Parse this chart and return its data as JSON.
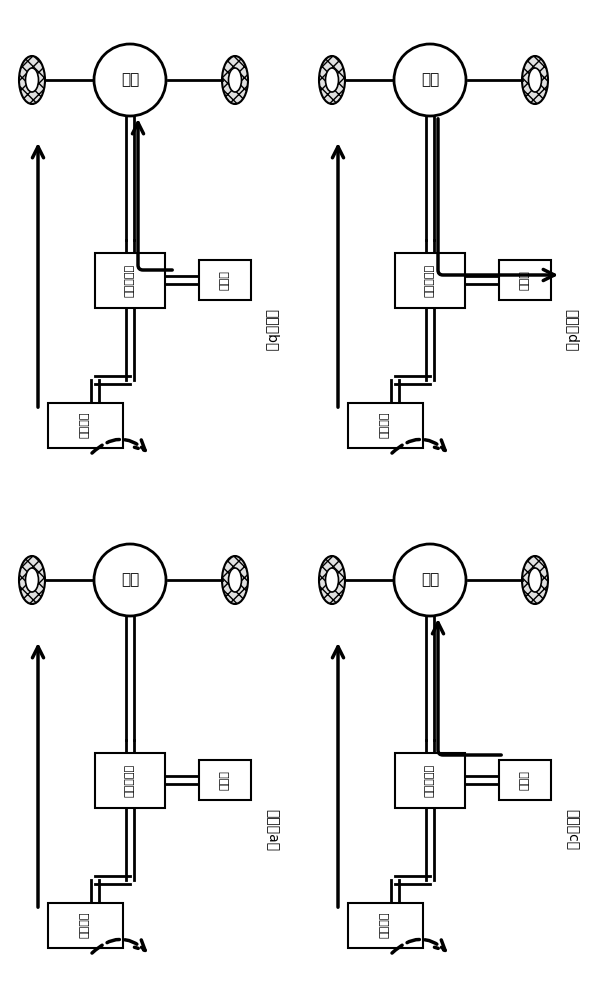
{
  "motor_label": "电机",
  "converter_label": "功率变换器",
  "battery_label": "蓄电池",
  "fuel_cell_label": "燃料电池",
  "mode_labels": [
    "模式（a）",
    "模式（b）",
    "模式（c）",
    "模式（d）"
  ],
  "bg_color": "#ffffff"
}
